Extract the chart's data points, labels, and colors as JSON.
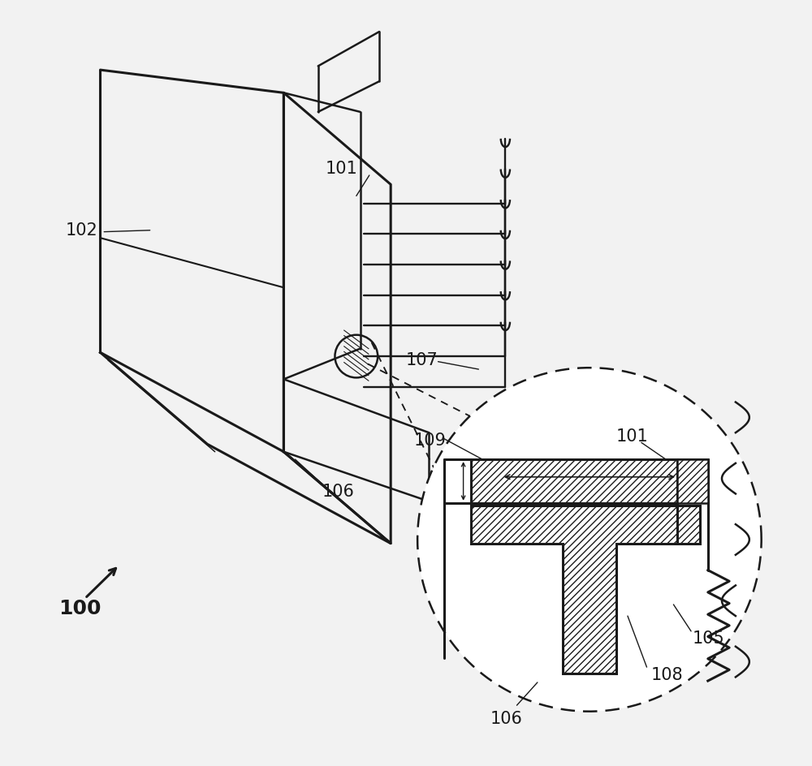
{
  "bg_color": "#f2f2f2",
  "line_color": "#1a1a1a",
  "label_color": "#1a1a1a",
  "label_fontsize": 15,
  "lw_main": 1.8,
  "lw_thick": 2.2
}
